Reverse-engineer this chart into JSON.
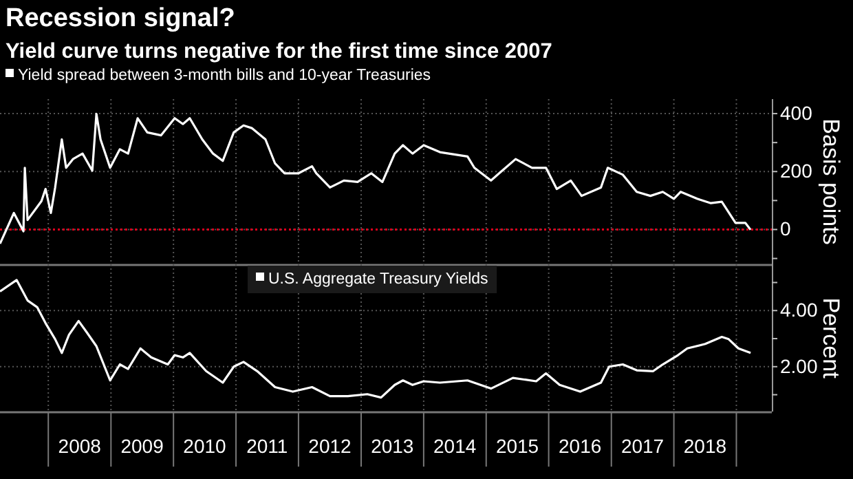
{
  "chart_data": [
    {
      "type": "line",
      "title": "Recession signal?",
      "subtitle": "Yield curve turns negative for the first time since 2007",
      "ylabel": "Basis points",
      "legend": "top left",
      "grid": true,
      "tick_labels": "y",
      "xlim": [
        "2007-03-25",
        "2019-07-27"
      ],
      "xticks": [
        {
          "value": "2008-01-01",
          "label": null
        },
        {
          "value": "2009-01-01",
          "label": null
        },
        {
          "value": "2010-01-01",
          "label": null
        },
        {
          "value": "2011-01-01",
          "label": null
        },
        {
          "value": "2012-01-01",
          "label": null
        },
        {
          "value": "2013-01-01",
          "label": null
        },
        {
          "value": "2014-01-01",
          "label": null
        },
        {
          "value": "2015-01-01",
          "label": null
        },
        {
          "value": "2016-01-01",
          "label": null
        },
        {
          "value": "2017-01-01",
          "label": null
        },
        {
          "value": "2018-01-01",
          "label": null
        },
        {
          "value": "2019-01-01",
          "label": null
        }
      ],
      "ylim": [
        -120,
        450
      ],
      "yticks": [
        {
          "value": -100,
          "label": null
        },
        0,
        {
          "value": 100,
          "label": null
        },
        200,
        {
          "value": 300,
          "label": null
        },
        400
      ],
      "ref_lines": [
        {
          "axis": "y",
          "value": 0,
          "color": "#e0001b",
          "line_style": "dotted"
        }
      ],
      "x": [
        "2007-03-25",
        "2007-06-14",
        "2007-08-09",
        "2007-08-17",
        "2007-09-02",
        "2007-11-22",
        "2007-12-16",
        "2008-01-16",
        "2008-02-10",
        "2008-03-20",
        "2008-04-14",
        "2008-05-24",
        "2008-07-19",
        "2008-09-14",
        "2008-10-08",
        "2008-11-01",
        "2008-12-27",
        "2009-02-22",
        "2009-04-11",
        "2009-06-06",
        "2009-08-01",
        "2009-10-20",
        "2010-01-08",
        "2010-02-25",
        "2010-04-06",
        "2010-06-18",
        "2010-08-20",
        "2010-10-16",
        "2010-12-19",
        "2011-02-14",
        "2011-04-03",
        "2011-06-22",
        "2011-08-17",
        "2011-10-12",
        "2012-01-01",
        "2012-03-20",
        "2012-04-14",
        "2012-07-03",
        "2012-09-22",
        "2012-12-11",
        "2013-03-01",
        "2013-05-05",
        "2013-07-16",
        "2013-09-02",
        "2013-10-28",
        "2014-01-01",
        "2014-04-06",
        "2014-09-14",
        "2014-10-24",
        "2015-01-29",
        "2015-03-18",
        "2015-06-22",
        "2015-09-26",
        "2015-12-16",
        "2016-02-17",
        "2016-05-09",
        "2016-07-11",
        "2016-11-01",
        "2016-12-11",
        "2017-03-09",
        "2017-05-29",
        "2017-08-17",
        "2017-10-28",
        "2018-01-01",
        "2018-02-10",
        "2018-05-17",
        "2018-08-05",
        "2018-10-08",
        "2018-12-27",
        "2019-02-22",
        "2019-03-25"
      ],
      "series": [
        {
          "name": "Yield spread between 3-month bills and 10-year Treasuries",
          "color": "#ffffff",
          "values": [
            -49,
            57,
            -6,
            213,
            33,
            98,
            140,
            57,
            145,
            311,
            213,
            243,
            262,
            203,
            399,
            311,
            213,
            277,
            262,
            384,
            335,
            325,
            384,
            364,
            384,
            311,
            262,
            237,
            335,
            359,
            350,
            311,
            228,
            194,
            194,
            218,
            194,
            145,
            169,
            164,
            194,
            164,
            262,
            291,
            262,
            291,
            267,
            252,
            213,
            169,
            194,
            243,
            213,
            213,
            140,
            169,
            116,
            145,
            213,
            189,
            130,
            116,
            130,
            106,
            130,
            106,
            91,
            96,
            23,
            23,
            -1
          ]
        }
      ]
    },
    {
      "type": "line",
      "ylabel": "Percent",
      "legend": "top",
      "grid": true,
      "xlim": [
        "2007-03-25",
        "2019-07-27"
      ],
      "xticks": [
        {
          "value": "2008-01-01",
          "label": null
        },
        {
          "value": "2008-07-02",
          "label": "2008"
        },
        {
          "value": "2009-01-01",
          "label": null
        },
        {
          "value": "2009-07-02",
          "label": "2009"
        },
        {
          "value": "2010-01-01",
          "label": null
        },
        {
          "value": "2010-07-02",
          "label": "2010"
        },
        {
          "value": "2011-01-01",
          "label": null
        },
        {
          "value": "2011-07-02",
          "label": "2011"
        },
        {
          "value": "2012-01-01",
          "label": null
        },
        {
          "value": "2012-07-02",
          "label": "2012"
        },
        {
          "value": "2013-01-01",
          "label": null
        },
        {
          "value": "2013-07-02",
          "label": "2013"
        },
        {
          "value": "2014-01-01",
          "label": null
        },
        {
          "value": "2014-07-02",
          "label": "2014"
        },
        {
          "value": "2015-01-01",
          "label": null
        },
        {
          "value": "2015-07-02",
          "label": "2015"
        },
        {
          "value": "2016-01-01",
          "label": null
        },
        {
          "value": "2016-07-02",
          "label": "2016"
        },
        {
          "value": "2017-01-01",
          "label": null
        },
        {
          "value": "2017-07-02",
          "label": "2017"
        },
        {
          "value": "2018-01-01",
          "label": null
        },
        {
          "value": "2018-07-02",
          "label": "2018"
        },
        {
          "value": "2019-01-01",
          "label": null
        }
      ],
      "ylim": [
        0.4,
        5.65
      ],
      "yticks": [
        {
          "value": 1,
          "label": null
        },
        {
          "value": 2,
          "label": "2.00"
        },
        {
          "value": 3,
          "label": null
        },
        {
          "value": 4,
          "label": "4.00"
        },
        {
          "value": 5,
          "label": null
        }
      ],
      "x": [
        "2007-03-25",
        "2007-06-30",
        "2007-09-02",
        "2007-10-28",
        "2007-12-16",
        "2008-02-10",
        "2008-03-20",
        "2008-05-01",
        "2008-06-26",
        "2008-08-13",
        "2008-10-08",
        "2008-12-27",
        "2009-02-22",
        "2009-04-11",
        "2009-06-22",
        "2009-08-24",
        "2009-11-29",
        "2010-01-08",
        "2010-02-25",
        "2010-04-06",
        "2010-07-11",
        "2010-10-16",
        "2010-12-19",
        "2011-02-14",
        "2011-05-05",
        "2011-08-17",
        "2011-11-29",
        "2012-03-20",
        "2012-07-03",
        "2012-10-16",
        "2013-02-06",
        "2013-04-27",
        "2013-07-16",
        "2013-09-02",
        "2013-10-28",
        "2014-01-01",
        "2014-04-06",
        "2014-09-14",
        "2015-01-29",
        "2015-06-06",
        "2015-10-20",
        "2015-12-16",
        "2016-03-05",
        "2016-07-03",
        "2016-11-01",
        "2016-12-19",
        "2017-03-09",
        "2017-05-29",
        "2017-09-02",
        "2017-10-28",
        "2018-01-25",
        "2018-03-20",
        "2018-07-03",
        "2018-10-08",
        "2018-11-17",
        "2019-01-13",
        "2019-03-25"
      ],
      "series": [
        {
          "name": "U.S. Aggregate Treasury Yields",
          "color": "#ffffff",
          "values": [
            4.68,
            5.09,
            4.36,
            4.12,
            3.55,
            2.98,
            2.49,
            3.14,
            3.63,
            3.22,
            2.73,
            1.51,
            2.08,
            1.92,
            2.65,
            2.33,
            2.08,
            2.41,
            2.33,
            2.49,
            1.84,
            1.43,
            2.0,
            2.17,
            1.84,
            1.27,
            1.11,
            1.27,
            0.95,
            0.95,
            1.02,
            0.9,
            1.35,
            1.51,
            1.35,
            1.48,
            1.43,
            1.51,
            1.22,
            1.6,
            1.48,
            1.76,
            1.35,
            1.11,
            1.43,
            2.0,
            2.08,
            1.87,
            1.84,
            2.08,
            2.41,
            2.65,
            2.81,
            3.06,
            2.98,
            2.65,
            2.49
          ]
        }
      ]
    }
  ]
}
